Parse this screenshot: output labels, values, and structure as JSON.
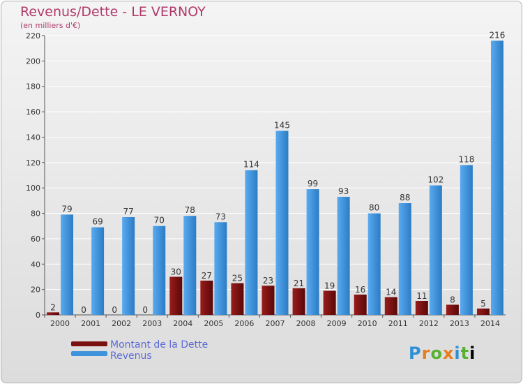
{
  "title": "Revenus/Dette - LE VERNOY",
  "subtitle": "(en milliers d'€)",
  "logo": "Proxiti",
  "chart_data": {
    "type": "bar",
    "categories": [
      "2000",
      "2001",
      "2002",
      "2003",
      "2004",
      "2005",
      "2006",
      "2007",
      "2008",
      "2009",
      "2010",
      "2011",
      "2012",
      "2013",
      "2014"
    ],
    "series": [
      {
        "name": "Montant de la Dette",
        "color": "#7a1010",
        "values": [
          2,
          0,
          0,
          0,
          30,
          27,
          25,
          23,
          21,
          19,
          16,
          14,
          11,
          8,
          5
        ]
      },
      {
        "name": "Revenus",
        "color": "#3d93dc",
        "values": [
          79,
          69,
          77,
          70,
          78,
          73,
          114,
          145,
          99,
          93,
          80,
          88,
          102,
          118,
          216
        ]
      }
    ],
    "ylim": [
      0,
      220
    ],
    "yticks": [
      0,
      20,
      40,
      60,
      80,
      100,
      120,
      140,
      160,
      180,
      200,
      220
    ],
    "grid": true,
    "legend": "bottom-left"
  }
}
